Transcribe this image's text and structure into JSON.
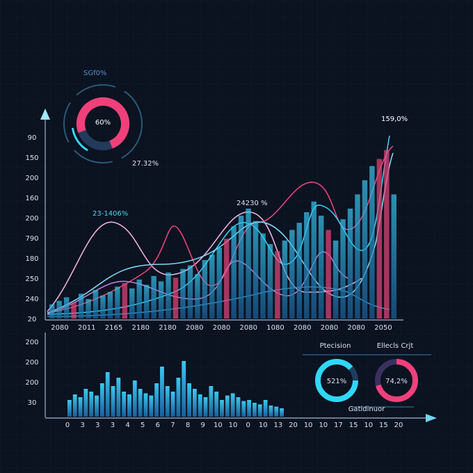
{
  "top_gauge": {
    "title": "SGf0%",
    "value_label": "60%",
    "side_label": "27.32%"
  },
  "main_chart": {
    "annotation_left": "23-1406%",
    "annotation_mid": "24230 %",
    "annotation_right": "159,0%",
    "y_labels": [
      "90",
      "150",
      "200",
      "160",
      "200",
      "790",
      "180",
      "250",
      "240",
      "20"
    ],
    "x_labels": [
      "2080",
      "2011",
      "2165",
      "2180",
      "2180",
      "2080",
      "2080",
      "2080",
      "1080",
      "2080",
      "2080",
      "2080",
      "2050"
    ],
    "bars": [
      8,
      10,
      12,
      9,
      14,
      11,
      16,
      13,
      15,
      18,
      20,
      17,
      22,
      19,
      24,
      21,
      26,
      23,
      28,
      30,
      25,
      33,
      36,
      40,
      45,
      52,
      58,
      62,
      55,
      48,
      42,
      38,
      44,
      50,
      54,
      60,
      66,
      58,
      50,
      44,
      56,
      62,
      70,
      78,
      86,
      90,
      95,
      70
    ]
  },
  "lower_chart": {
    "y_labels": [
      "200",
      "200",
      "200",
      "30"
    ],
    "x_labels": [
      "0",
      "3",
      "3",
      "3",
      "4",
      "5",
      "6",
      "7",
      "8",
      "9",
      "10",
      "10",
      "0",
      "10",
      "13",
      "20",
      "10",
      "10",
      "17",
      "15",
      "10",
      "15",
      "20"
    ],
    "bars": [
      30,
      40,
      35,
      50,
      45,
      38,
      60,
      80,
      55,
      70,
      45,
      40,
      65,
      50,
      42,
      38,
      60,
      90,
      55,
      45,
      70,
      100,
      60,
      50,
      40,
      35,
      55,
      45,
      30,
      38,
      42,
      35,
      28,
      30,
      25,
      22,
      30,
      20,
      18,
      15
    ]
  },
  "gauges": [
    {
      "title": "Ptecision",
      "value_label": "521%"
    },
    {
      "title": "Ellecls Crjt",
      "value_label": "74,2%"
    }
  ],
  "gauge_caption": "Gatidinuor"
}
